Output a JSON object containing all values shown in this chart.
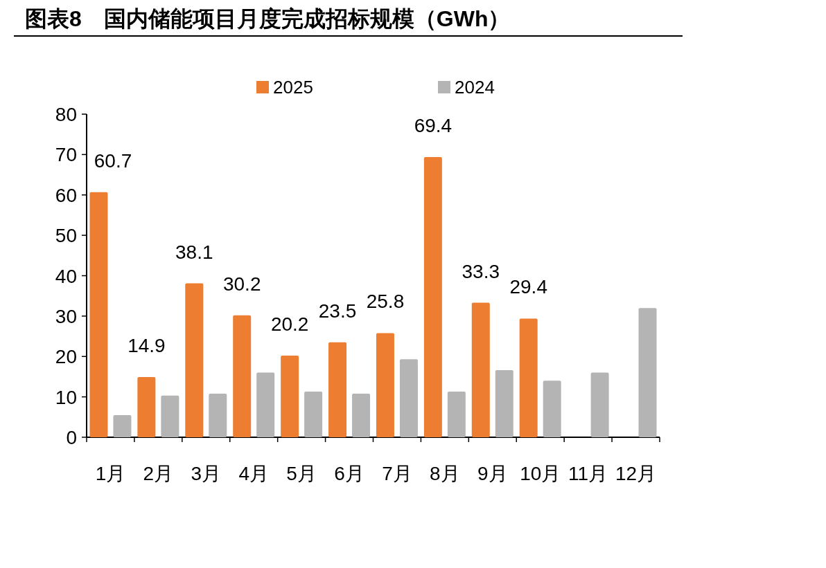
{
  "chart_data": {
    "type": "bar",
    "title": "图表8　国内储能项目月度完成招标规模（GWh）",
    "categories": [
      "1月",
      "2月",
      "3月",
      "4月",
      "5月",
      "6月",
      "7月",
      "8月",
      "9月",
      "10月",
      "11月",
      "12月"
    ],
    "series": [
      {
        "name": "2025",
        "color": "#ed7d31",
        "values": [
          60.7,
          14.9,
          38.1,
          30.2,
          20.2,
          23.5,
          25.8,
          69.4,
          33.3,
          29.4,
          null,
          null
        ],
        "value_labels": [
          "60.7",
          "14.9",
          "38.1",
          "30.2",
          "20.2",
          "23.5",
          "25.8",
          "69.4",
          "33.3",
          "29.4",
          null,
          null
        ]
      },
      {
        "name": "2024",
        "color": "#b4b4b4",
        "values": [
          5.5,
          10.3,
          10.8,
          16,
          11.3,
          10.8,
          19.3,
          11.3,
          16.6,
          14,
          16,
          32
        ]
      }
    ],
    "ylim": [
      0,
      80
    ],
    "yticks": [
      0,
      10,
      20,
      30,
      40,
      50,
      60,
      70,
      80
    ],
    "legend": "top"
  }
}
